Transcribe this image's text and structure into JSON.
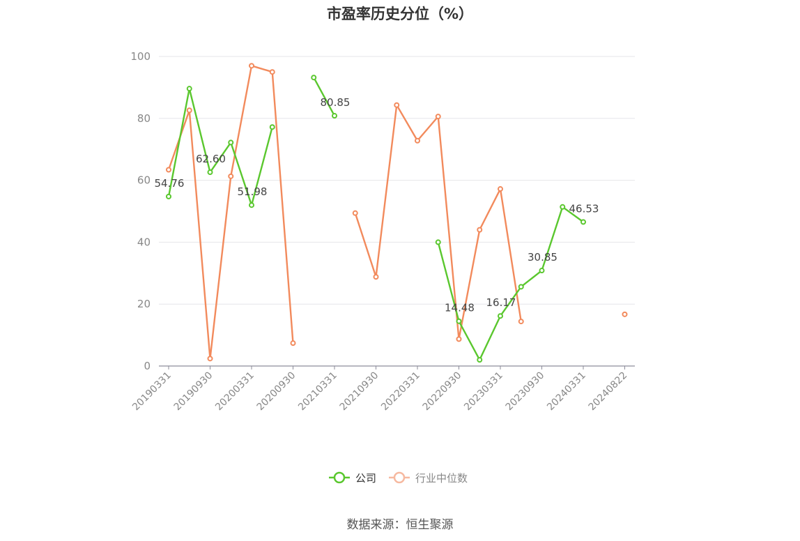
{
  "chart_data": {
    "type": "line",
    "title": "市盈率历史分位（%）",
    "xlabel": "",
    "ylabel": "",
    "ylim": [
      0,
      100
    ],
    "yticks": [
      0,
      20,
      40,
      60,
      80,
      100
    ],
    "grid": true,
    "legend_position": "bottom",
    "x": [
      "20190331",
      "20190630",
      "20190930",
      "20191231",
      "20200331",
      "20200630",
      "20200930",
      "20201231",
      "20210331",
      "20210630",
      "20210930",
      "20211231",
      "20220331",
      "20220630",
      "20220930",
      "20221231",
      "20230331",
      "20230630",
      "20230930",
      "20231231",
      "20240331",
      "20240630",
      "20240822"
    ],
    "xtick_labels": [
      "20190331",
      "20190930",
      "20200331",
      "20200930",
      "20210331",
      "20210930",
      "20220331",
      "20220930",
      "20230331",
      "20230930",
      "20240331",
      "20240822"
    ],
    "series": [
      {
        "name": "公司",
        "color": "#5ac72e",
        "values": [
          54.76,
          89.6,
          62.6,
          72.2,
          51.98,
          77.2,
          null,
          93.2,
          80.85,
          null,
          null,
          null,
          null,
          40.0,
          14.48,
          2.0,
          16.17,
          25.6,
          30.85,
          51.4,
          46.53,
          null,
          null
        ],
        "labels": [
          true,
          false,
          true,
          false,
          true,
          false,
          false,
          false,
          true,
          false,
          false,
          false,
          false,
          false,
          true,
          false,
          true,
          false,
          true,
          false,
          true,
          false,
          false
        ]
      },
      {
        "name": "行业中位数",
        "color": "#f28a5c",
        "values": [
          63.4,
          82.6,
          2.4,
          61.3,
          97.0,
          95.0,
          7.4,
          null,
          null,
          49.4,
          28.8,
          84.3,
          72.8,
          80.6,
          8.7,
          44.0,
          57.2,
          14.4,
          null,
          null,
          null,
          null,
          16.7
        ],
        "labels": []
      }
    ]
  },
  "source_text": "数据来源：恒生聚源"
}
